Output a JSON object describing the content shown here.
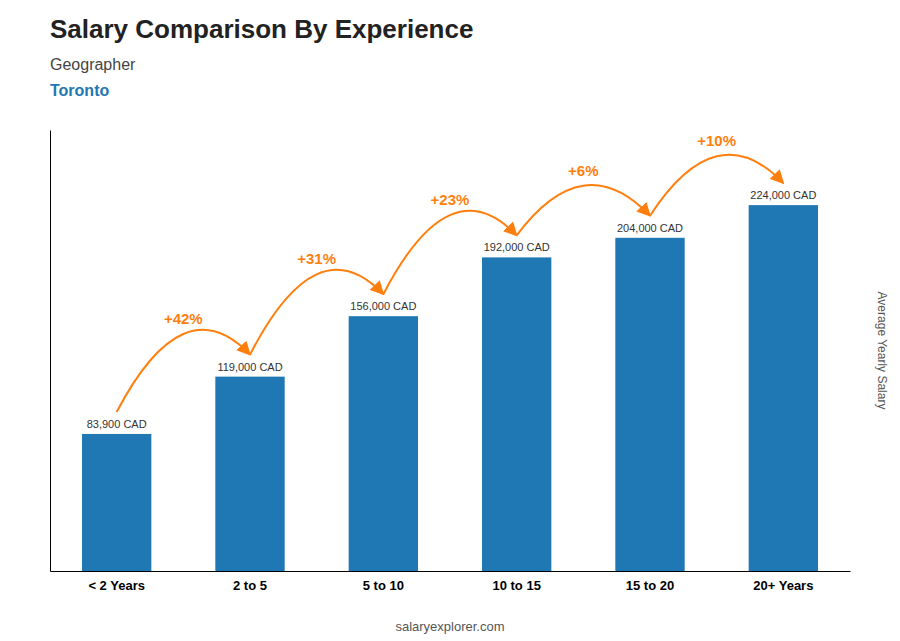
{
  "chart_data": {
    "type": "bar",
    "title": "Salary Comparison By Experience",
    "subtitle": [
      "Geographer",
      "Toronto"
    ],
    "ylabel": "Average Yearly Salary",
    "categories": [
      "< 2 Years",
      "2 to 5",
      "5 to 10",
      "10 to 15",
      "15 to 20",
      "20+ Years"
    ],
    "values": [
      83900,
      119000,
      156000,
      192000,
      204000,
      224000
    ],
    "value_labels": [
      "83,900 CAD",
      "119,000 CAD",
      "156,000 CAD",
      "192,000 CAD",
      "204,000 CAD",
      "224,000 CAD"
    ],
    "data_labels": true,
    "annotations": [
      "+42%",
      "+31%",
      "+23%",
      "+6%",
      "+10%"
    ],
    "source": "salaryexplorer.com",
    "ylim": [
      0,
      270000
    ],
    "grid": false,
    "tick_labels": "x"
  }
}
